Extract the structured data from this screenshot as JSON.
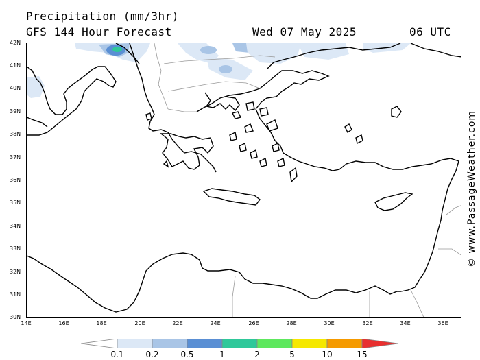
{
  "header": {
    "title": "Precipitation (mm/3hr)",
    "subtitle": "GFS 144 Hour Forecast",
    "date": "Wed 07 May 2025",
    "time": "06 UTC"
  },
  "credit": "© www.PassageWeather.com",
  "axes": {
    "lat_labels": [
      "42N",
      "41N",
      "40N",
      "39N",
      "38N",
      "37N",
      "36N",
      "35N",
      "34N",
      "33N",
      "32N",
      "31N",
      "30N"
    ],
    "lon_labels": [
      "14E",
      "16E",
      "18E",
      "20E",
      "22E",
      "24E",
      "26E",
      "28E",
      "30E",
      "32E",
      "34E",
      "36E"
    ]
  },
  "legend": {
    "labels": [
      "0.1",
      "0.2",
      "0.5",
      "1",
      "2",
      "5",
      "10",
      "15"
    ],
    "colors": [
      "#ffffff",
      "#dce8f6",
      "#a9c5e6",
      "#5a8fd4",
      "#2fc89a",
      "#5ee85e",
      "#f5e800",
      "#f59a00",
      "#e83030"
    ]
  },
  "colors": {
    "coast": "#000000",
    "border": "#999999",
    "precip_light": "#dce8f6",
    "precip_mid": "#a9c5e6",
    "precip_heavy": "#5a8fd4",
    "precip_max": "#2fc89a"
  }
}
